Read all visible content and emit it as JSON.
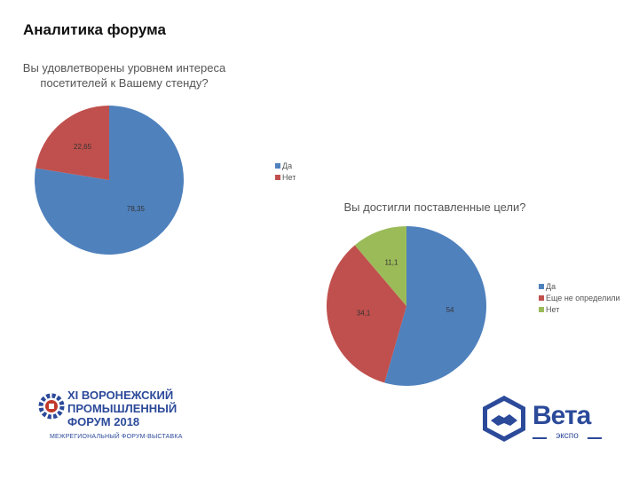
{
  "page": {
    "title": "Аналитика форума"
  },
  "colors": {
    "blue": "#4f81bd",
    "red": "#c0504d",
    "green": "#9bbb59",
    "brand": "#2c4a9a"
  },
  "chart_data": [
    {
      "type": "pie",
      "title_lines": [
        "Вы удовлетворены уровнем интереса",
        "посетителей к Вашему стенду?"
      ],
      "categories": [
        "Да",
        "Нет"
      ],
      "values": [
        78.35,
        22.65
      ],
      "value_labels": [
        "78,35",
        "22,65"
      ],
      "legend_position": "right"
    },
    {
      "type": "pie",
      "title": "Вы достигли поставленные цели?",
      "categories": [
        "Да",
        "Еще не определили",
        "Нет"
      ],
      "values": [
        54,
        34.1,
        11.1
      ],
      "value_labels": [
        "54",
        "34,1",
        "11,1"
      ],
      "legend_position": "right"
    }
  ],
  "logos": {
    "forum": {
      "line1": "XI ВОРОНЕЖСКИЙ",
      "line2": "ПРОМЫШЛЕННЫЙ",
      "line3": "ФОРУМ 2018",
      "subtitle": "МЕЖРЕГИОНАЛЬНЫЙ ФОРУМ-ВЫСТАВКА"
    },
    "veta": {
      "name": "Вета",
      "subtitle": "экспо"
    }
  }
}
